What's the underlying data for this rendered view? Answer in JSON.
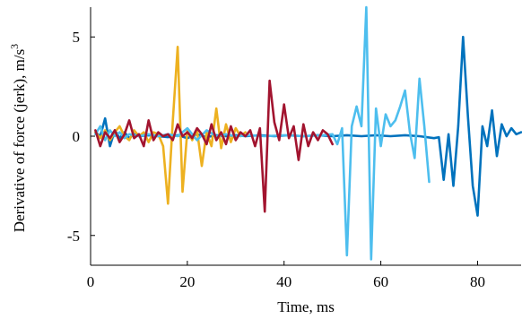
{
  "chart_data": {
    "type": "line",
    "title": "",
    "xlabel": "Time, ms",
    "ylabel": "Derivative of force (jerk), m/s",
    "ylabel_superscript": "3",
    "xlim": [
      0,
      89
    ],
    "ylim": [
      -6.5,
      6.5
    ],
    "xticks": [
      0,
      20,
      40,
      60,
      80
    ],
    "yticks": [
      -5,
      0,
      5
    ],
    "grid": false,
    "legend": "none",
    "series": [
      {
        "color": "#0072BD",
        "x": [
          1,
          2,
          3,
          4,
          5,
          6,
          7,
          8,
          9,
          10,
          12,
          14,
          16,
          18,
          20,
          22,
          24,
          26,
          28,
          30,
          32,
          35,
          38,
          41,
          44,
          47,
          50,
          53,
          56,
          59,
          62,
          65,
          68,
          71,
          72,
          73,
          74,
          75,
          76,
          77,
          78,
          79,
          80,
          81,
          82,
          83,
          84,
          85,
          86,
          87,
          88,
          89
        ],
        "y": [
          0.2,
          0,
          0.9,
          -0.5,
          0.3,
          -0.1,
          0.2,
          -0.1,
          0.1,
          0,
          0.05,
          0,
          -0.05,
          0.05,
          -0.1,
          0.1,
          -0.05,
          0.05,
          0,
          0.05,
          0,
          0.05,
          0,
          0.05,
          0,
          0.05,
          0,
          0.05,
          0,
          0.05,
          0,
          0.05,
          0,
          -0.1,
          -0.05,
          -2.2,
          0.1,
          -2.5,
          0.5,
          5,
          1,
          -2.5,
          -4,
          0.5,
          -0.5,
          1.3,
          -1,
          0.6,
          0,
          0.4,
          0.1,
          0.2
        ]
      },
      {
        "color": "#EDB120",
        "x": [
          1,
          2,
          3,
          4,
          5,
          6,
          7,
          8,
          9,
          10,
          11,
          12,
          13,
          14,
          15,
          16,
          17,
          18,
          19,
          20,
          21,
          22,
          23,
          24,
          25,
          26,
          27,
          28,
          29,
          30,
          31,
          32
        ],
        "y": [
          0.2,
          -0.1,
          0.3,
          -0.2,
          0.2,
          0.5,
          0,
          -0.2,
          0.3,
          0,
          0.2,
          -0.3,
          0.2,
          0.1,
          -0.5,
          -3.4,
          0.8,
          4.5,
          -2.8,
          0.3,
          -0.2,
          0.3,
          -1.5,
          0.2,
          -0.5,
          1.4,
          -0.6,
          0.6,
          -0.3,
          0.4,
          0,
          0.2
        ]
      },
      {
        "color": "#4DBEEE",
        "x": [
          1,
          2,
          3,
          4,
          5,
          6,
          7,
          8,
          10,
          12,
          14,
          16,
          18,
          20,
          22,
          24,
          26,
          28,
          30,
          33,
          36,
          40,
          44,
          48,
          50,
          51,
          52,
          53,
          54,
          55,
          56,
          57,
          58,
          59,
          60,
          61,
          62,
          63,
          64,
          65,
          66,
          67,
          68,
          69,
          70
        ],
        "y": [
          0.1,
          0.5,
          -0.2,
          0.3,
          0,
          0.2,
          -0.1,
          0.1,
          0,
          0.1,
          0,
          0.1,
          0,
          0.4,
          -0.2,
          0.3,
          0,
          0.1,
          0,
          0.05,
          0,
          0.05,
          0,
          0.05,
          0.1,
          -0.4,
          0.4,
          -6,
          0.5,
          1.5,
          0.5,
          6.5,
          -6.2,
          1.4,
          -0.5,
          1.1,
          0.5,
          0.8,
          1.5,
          2.3,
          0.2,
          -1.1,
          2.9,
          0.5,
          -2.3
        ]
      },
      {
        "color": "#A2142F",
        "x": [
          1,
          2,
          3,
          4,
          5,
          6,
          7,
          8,
          9,
          10,
          11,
          12,
          13,
          14,
          15,
          16,
          17,
          18,
          19,
          20,
          21,
          22,
          23,
          24,
          25,
          26,
          27,
          28,
          29,
          30,
          31,
          32,
          33,
          34,
          35,
          36,
          37,
          38,
          39,
          40,
          41,
          42,
          43,
          44,
          45,
          46,
          47,
          48,
          49,
          50
        ],
        "y": [
          0.3,
          -0.5,
          0.2,
          -0.1,
          0.3,
          -0.3,
          0.1,
          0.8,
          -0.1,
          0.1,
          -0.5,
          0.8,
          -0.2,
          0.2,
          0,
          0.1,
          -0.2,
          0.6,
          0,
          0.2,
          -0.1,
          0.4,
          0.1,
          -0.4,
          0.6,
          -0.2,
          0.2,
          -0.4,
          0.5,
          -0.2,
          0.2,
          0,
          0.3,
          -0.5,
          0.4,
          -3.8,
          2.8,
          0.7,
          -0.2,
          1.6,
          -0.1,
          0.5,
          -1.2,
          0.6,
          -0.5,
          0.2,
          -0.2,
          0.3,
          0.1,
          -0.4
        ]
      }
    ]
  }
}
